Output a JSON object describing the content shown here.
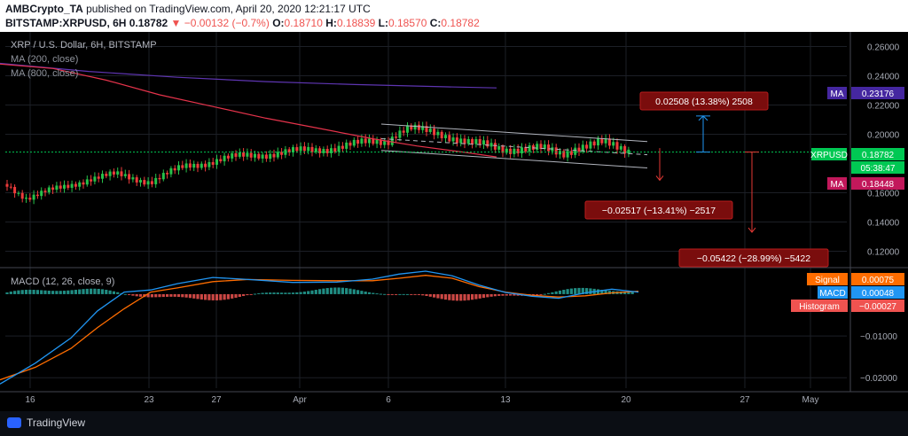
{
  "header": {
    "publisher": "AMBCrypto_TA",
    "published_text": "published on TradingView.com, April 20, 2020 12:21:17 UTC",
    "symbol": "BITSTAMP:XRPUSD, 6H",
    "last": "0.18782",
    "change": "−0.00132 (−0.7%)",
    "o_label": "O:",
    "o_value": "0.18710",
    "h_label": "H:",
    "h_value": "0.18839",
    "l_label": "L:",
    "l_value": "0.18570",
    "c_label": "C:",
    "c_value": "0.18782"
  },
  "footer": {
    "brand": "TradingView"
  },
  "chart_data": [
    {
      "type": "candlestick",
      "title": "XRP / U.S. Dollar, 6H, BITSTAMP",
      "legend": [
        "MA (200, close)",
        "MA (800, close)"
      ],
      "x_tick_labels": [
        "16",
        "23",
        "27",
        "Apr",
        "6",
        "13",
        "20",
        "27",
        "May"
      ],
      "y_tick_labels": [
        "0.26000",
        "0.24000",
        "0.22000",
        "0.20000",
        "0.16000",
        "0.14000",
        "0.12000"
      ],
      "ylim": [
        0.11,
        0.27
      ],
      "price_axis_labels": [
        {
          "name": "MA",
          "value": "0.23176",
          "color": "#4527a0"
        },
        {
          "name": "XRPUSD",
          "value": "0.18782",
          "color": "#00c853"
        },
        {
          "name": "",
          "value": "05:38:47",
          "color": "#00c853"
        },
        {
          "name": "MA",
          "value": "0.18448",
          "color": "#c2185b"
        }
      ],
      "measure_boxes": [
        {
          "text": "0.02508 (13.38%) 2508"
        },
        {
          "text": "−0.02517 (−13.41%) −2517"
        },
        {
          "text": "−0.05422 (−28.99%) −5422"
        }
      ],
      "ma800": [
        [
          0,
          0.2485
        ],
        [
          100,
          0.243
        ],
        [
          200,
          0.239
        ],
        [
          300,
          0.236
        ],
        [
          400,
          0.234
        ],
        [
          500,
          0.2325
        ],
        [
          560,
          0.2317
        ]
      ],
      "ma200": [
        [
          0,
          0.248
        ],
        [
          60,
          0.245
        ],
        [
          120,
          0.237
        ],
        [
          180,
          0.227
        ],
        [
          240,
          0.219
        ],
        [
          300,
          0.211
        ],
        [
          360,
          0.204
        ],
        [
          420,
          0.197
        ],
        [
          470,
          0.192
        ],
        [
          520,
          0.188
        ],
        [
          560,
          0.1845
        ]
      ],
      "channel": {
        "upper": [
          [
            430,
            0.207
          ],
          [
            730,
            0.195
          ]
        ],
        "lower": [
          [
            430,
            0.189
          ],
          [
            730,
            0.177
          ]
        ],
        "mid": [
          [
            430,
            0.197
          ],
          [
            730,
            0.186
          ]
        ]
      },
      "last_price": 0.18782
    },
    {
      "type": "line",
      "title": "MACD (12, 26, close, 9)",
      "y_tick_labels": [
        "−0.01000",
        "−0.02000"
      ],
      "ylim": [
        -0.0225,
        0.0055
      ],
      "series": [
        {
          "name": "Signal",
          "value_label": "0.00075",
          "color": "#ff6d00",
          "values": [
            [
              0,
              -0.0205
            ],
            [
              40,
              -0.0175
            ],
            [
              80,
              -0.013
            ],
            [
              110,
              -0.008
            ],
            [
              140,
              -0.0035
            ],
            [
              170,
              0.0005
            ],
            [
              200,
              0.0015
            ],
            [
              240,
              0.003
            ],
            [
              280,
              0.0035
            ],
            [
              330,
              0.0033
            ],
            [
              380,
              0.0032
            ],
            [
              420,
              0.0032
            ],
            [
              450,
              0.0038
            ],
            [
              480,
              0.0045
            ],
            [
              510,
              0.0038
            ],
            [
              540,
              0.0018
            ],
            [
              570,
              0.0005
            ],
            [
              600,
              -0.0003
            ],
            [
              630,
              -0.0007
            ],
            [
              660,
              -0.0004
            ],
            [
              690,
              0.0003
            ],
            [
              720,
              0.0007
            ]
          ]
        },
        {
          "name": "MACD",
          "value_label": "0.00048",
          "color": "#2196f3",
          "values": [
            [
              0,
              -0.0215
            ],
            [
              40,
              -0.0165
            ],
            [
              80,
              -0.0105
            ],
            [
              110,
              -0.004
            ],
            [
              140,
              0.0005
            ],
            [
              170,
              0.001
            ],
            [
              200,
              0.0025
            ],
            [
              240,
              0.004
            ],
            [
              280,
              0.0035
            ],
            [
              330,
              0.0028
            ],
            [
              380,
              0.0029
            ],
            [
              420,
              0.0036
            ],
            [
              450,
              0.0048
            ],
            [
              480,
              0.0055
            ],
            [
              510,
              0.0044
            ],
            [
              540,
              0.0022
            ],
            [
              570,
              0.0004
            ],
            [
              600,
              -0.0005
            ],
            [
              630,
              -0.001
            ],
            [
              660,
              0.0003
            ],
            [
              690,
              0.0012
            ],
            [
              720,
              0.0005
            ]
          ]
        },
        {
          "name": "Histogram",
          "value_label": "−0.00027",
          "color": "#ef5350",
          "values": []
        }
      ]
    }
  ]
}
